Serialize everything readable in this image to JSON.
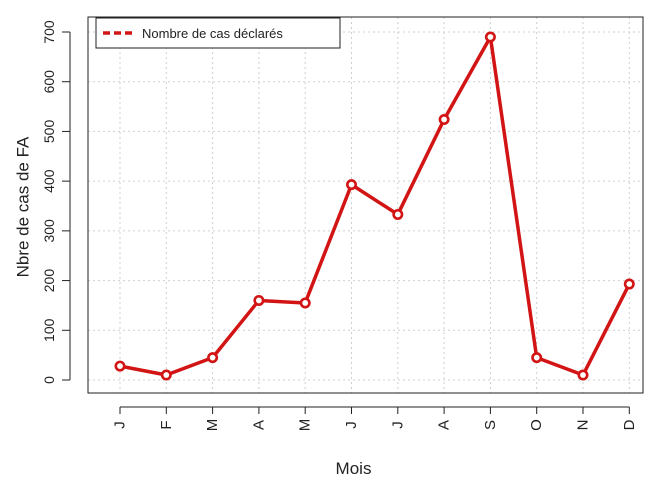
{
  "chart_data": {
    "type": "line",
    "title": "",
    "xlabel": "Mois",
    "ylabel": "Nbre de cas de FA",
    "categories": [
      "J",
      "F",
      "M",
      "A",
      "M",
      "J",
      "J",
      "A",
      "S",
      "O",
      "N",
      "D"
    ],
    "series": [
      {
        "name": "Nombre de cas déclarés",
        "values": [
          28,
          10,
          45,
          160,
          155,
          393,
          333,
          524,
          690,
          45,
          10,
          193
        ]
      }
    ],
    "ylim": [
      0,
      720
    ],
    "yticks": [
      0,
      100,
      200,
      300,
      400,
      500,
      600,
      700
    ],
    "grid": true,
    "legend_position": "top-left",
    "colors": {
      "line": "#d21414",
      "marker_fill": "#ffffff",
      "grid": "#cfcfcf",
      "axis": "#222222"
    }
  }
}
